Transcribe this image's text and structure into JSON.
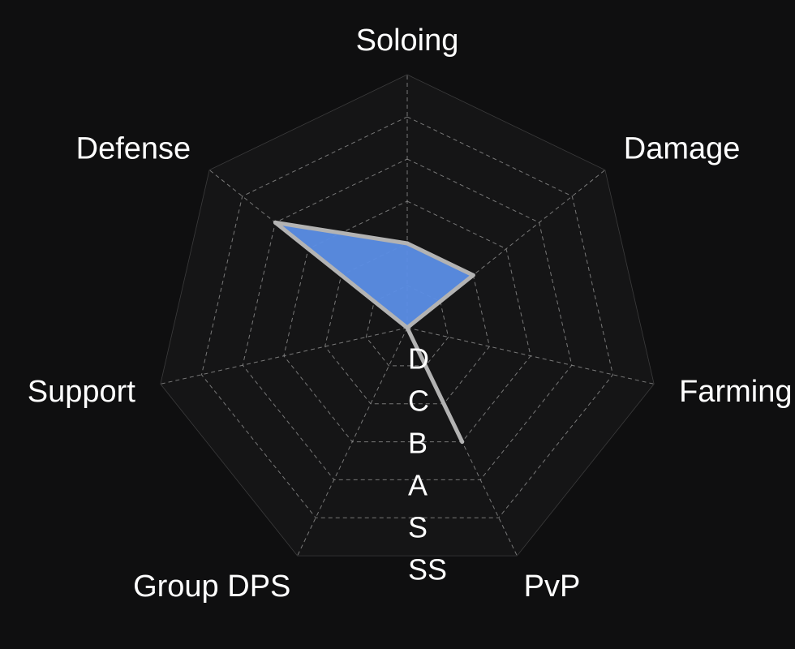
{
  "chart_data": {
    "type": "radar",
    "axes": [
      "Soloing",
      "Damage",
      "Farming",
      "PvP",
      "Group DPS",
      "Support",
      "Defense"
    ],
    "levels": [
      "D",
      "C",
      "B",
      "A",
      "S",
      "SS"
    ],
    "series": [
      {
        "values": [
          2,
          2,
          0,
          3,
          0,
          0,
          4
        ]
      }
    ],
    "range": [
      0,
      6
    ],
    "grid": true,
    "colors": {
      "background": "#0f0f10",
      "panel": "#151516",
      "grid": "#8a8a8a",
      "fill": "#5b8ee6",
      "stroke": "#b3b3b3",
      "label": "#ffffff"
    }
  }
}
